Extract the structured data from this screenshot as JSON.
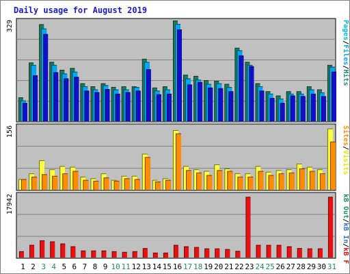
{
  "chart_data": {
    "type": "bar",
    "title": "Daily usage for August 2019",
    "colors": {
      "background": "#ffffff",
      "panel_bg": "#c0c0c0",
      "grid": "#808080",
      "hits": "#1e7a5c",
      "files": "#00a8f0",
      "pages": "#1010c8",
      "visits": "#ffff40",
      "sites": "#ff8c00",
      "kb_in": "#3070d0",
      "kb_out": "#1e8c64",
      "kb_f": "#e81010",
      "weekday_label": "#000000",
      "weekend_label": "#1e8c64"
    },
    "days": [
      "1",
      "2",
      "3",
      "4",
      "5",
      "6",
      "7",
      "8",
      "9",
      "10",
      "11",
      "12",
      "13",
      "14",
      "15",
      "16",
      "17",
      "18",
      "19",
      "20",
      "21",
      "22",
      "23",
      "24",
      "25",
      "26",
      "27",
      "28",
      "29",
      "30",
      "31"
    ],
    "weekend_days": [
      "3",
      "4",
      "10",
      "11",
      "17",
      "18",
      "24",
      "25",
      "31"
    ],
    "panels": [
      {
        "name": "hits-files-pages",
        "ymax_label": "329",
        "ymax": 329,
        "side_labels": [
          {
            "text": "Hits",
            "color": "#1e8c64"
          },
          {
            "text": "/",
            "color": "#000000"
          },
          {
            "text": "Files",
            "color": "#00a8f0"
          },
          {
            "text": "/",
            "color": "#000000"
          },
          {
            "text": "Pages",
            "color": "#00b8e0"
          }
        ],
        "series": [
          {
            "name": "Hits",
            "values": [
              78,
              192,
              317,
              194,
              168,
              174,
              124,
              114,
              124,
              112,
              114,
              114,
              204,
              110,
              114,
              329,
              152,
              148,
              134,
              132,
              122,
              240,
              194,
              124,
              98,
              84,
              98,
              98,
              114,
              104,
              184
            ]
          },
          {
            "name": "Files",
            "values": [
              68,
              184,
              303,
              184,
              156,
              162,
              114,
              104,
              118,
              104,
              104,
              112,
              194,
              100,
              104,
              318,
              140,
              136,
              122,
              124,
              112,
              232,
              184,
              114,
              90,
              74,
              90,
              90,
              104,
              94,
              178
            ]
          },
          {
            "name": "Pages",
            "values": [
              60,
              150,
              285,
              160,
              140,
              145,
              100,
              95,
              105,
              90,
              95,
              100,
              170,
              88,
              90,
              300,
              120,
              128,
              110,
              108,
              98,
              215,
              180,
              100,
              76,
              60,
              84,
              82,
              90,
              82,
              162
            ]
          }
        ]
      },
      {
        "name": "visits-sites",
        "ymax_label": "156",
        "ymax": 156,
        "side_labels": [
          {
            "text": "Visits",
            "color": "#e8e800"
          },
          {
            "text": "/",
            "color": "#000000"
          },
          {
            "text": "Sites",
            "color": "#ff8c00"
          }
        ],
        "series": [
          {
            "name": "Visits",
            "values": [
              26,
              40,
              72,
              50,
              58,
              56,
              32,
              28,
              40,
              24,
              34,
              34,
              88,
              24,
              28,
              146,
              58,
              50,
              46,
              62,
              52,
              40,
              40,
              58,
              44,
              48,
              50,
              64,
              56,
              50,
              150
            ]
          },
          {
            "name": "Sites",
            "values": [
              26,
              32,
              38,
              34,
              40,
              46,
              24,
              22,
              30,
              22,
              28,
              26,
              80,
              20,
              24,
              138,
              48,
              42,
              36,
              48,
              46,
              32,
              32,
              46,
              36,
              40,
              42,
              52,
              46,
              40,
              118
            ]
          }
        ]
      },
      {
        "name": "kbytes",
        "ymax_label": "17942",
        "ymax": 17942,
        "side_labels": [
          {
            "text": "kB F",
            "color": "#e81010"
          },
          {
            "text": "/",
            "color": "#000000"
          },
          {
            "text": "kB In",
            "color": "#3070d0"
          },
          {
            "text": "/",
            "color": "#000000"
          },
          {
            "text": "kB Out",
            "color": "#1e8c64"
          }
        ],
        "series": [
          {
            "name": "kB F",
            "values": [
              1800,
              3600,
              4900,
              4600,
              4000,
              3200,
              2000,
              2000,
              2000,
              1800,
              1600,
              1800,
              2700,
              1400,
              1400,
              3600,
              3200,
              3000,
              2600,
              2600,
              2400,
              1900,
              17300,
              3600,
              3600,
              3600,
              3200,
              2700,
              2600,
              2600,
              17300
            ]
          }
        ]
      }
    ]
  }
}
